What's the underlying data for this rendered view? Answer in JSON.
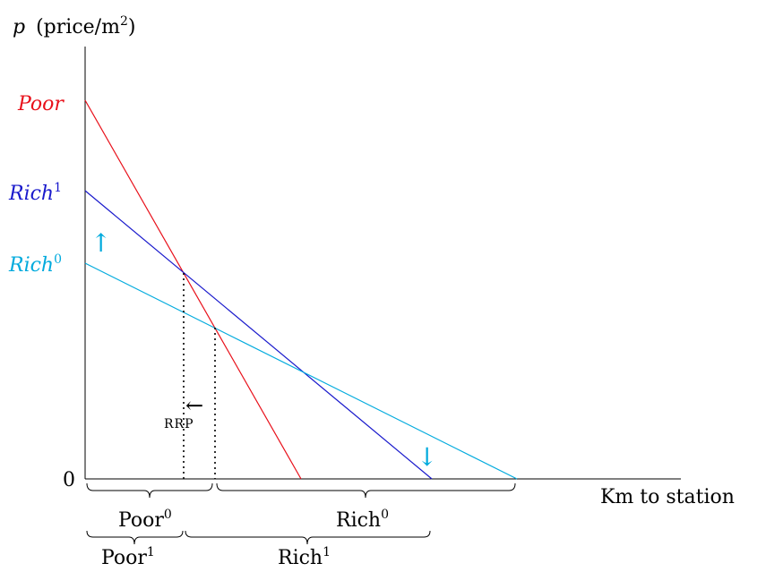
{
  "axes": {
    "y_label_var": "p",
    "y_label_text": "(price/m",
    "y_label_sup": "2",
    "y_label_close": ")",
    "x_label": "Km to station",
    "origin_label": "0"
  },
  "curves": {
    "poor": {
      "label": "Poor",
      "color": "#e8101a"
    },
    "rich1": {
      "label": "Rich",
      "sup": "1",
      "color": "#1a1acc"
    },
    "rich0": {
      "label": "Rich",
      "sup": "0",
      "color": "#00aadd"
    }
  },
  "annotations": {
    "rrp_label": "RRP",
    "rrp_arrow": "←",
    "shift_up_arrow": "↑",
    "shift_down_arrow": "↓"
  },
  "brackets": {
    "poor0": {
      "label": "Poor",
      "sup": "0"
    },
    "rich0": {
      "label": "Rich",
      "sup": "0"
    },
    "poor1": {
      "label": "Poor",
      "sup": "1"
    },
    "rich1": {
      "label": "Rich",
      "sup": "1"
    }
  }
}
